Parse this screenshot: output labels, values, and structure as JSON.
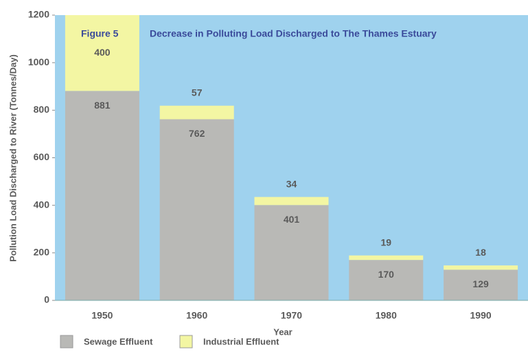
{
  "chart_data": {
    "type": "stacked_bar",
    "figure_label": "Figure 5",
    "title": "Decrease in Polluting Load Discharged to The Thames Estuary",
    "x_label": "Year",
    "y_label": "Pollution Load Discharged to River (Tonnes/Day)",
    "categories": [
      "1950",
      "1960",
      "1970",
      "1980",
      "1990"
    ],
    "series": [
      {
        "name": "Sewage Effluent",
        "color": "#b9b9b6",
        "values": [
          881,
          762,
          401,
          170,
          129
        ]
      },
      {
        "name": "Industrial Effluent",
        "color": "#f3f6a3",
        "values": [
          400,
          57,
          34,
          19,
          18
        ]
      }
    ],
    "ylim": [
      0,
      1200
    ],
    "yticks": [
      0,
      200,
      400,
      600,
      800,
      1000,
      1200
    ],
    "legend": "bottom-left"
  }
}
